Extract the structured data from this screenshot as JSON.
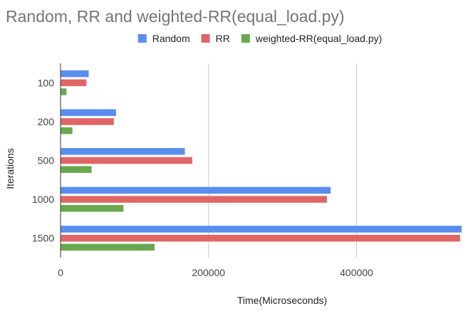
{
  "chart_data": {
    "type": "bar",
    "orientation": "horizontal",
    "title": "Random, RR and weighted-RR(equal_load.py)",
    "xlabel": "Time(Microseconds)",
    "ylabel": "Iterations",
    "categories": [
      "100",
      "200",
      "500",
      "1000",
      "1500"
    ],
    "series": [
      {
        "name": "Random",
        "color": "#5b8def",
        "values": [
          38000,
          75000,
          168000,
          365000,
          542000
        ]
      },
      {
        "name": "RR",
        "color": "#e06666",
        "values": [
          35000,
          72000,
          178000,
          360000,
          540000
        ]
      },
      {
        "name": "weighted-RR(equal_load.py)",
        "color": "#6aa84f",
        "values": [
          8000,
          16000,
          42000,
          85000,
          127000
        ]
      }
    ],
    "xlim": [
      0,
      542000
    ],
    "x_ticks": [
      0,
      200000,
      400000
    ],
    "x_tick_labels": [
      "0",
      "200000",
      "400000"
    ],
    "grid": true,
    "legend_position": "top"
  }
}
